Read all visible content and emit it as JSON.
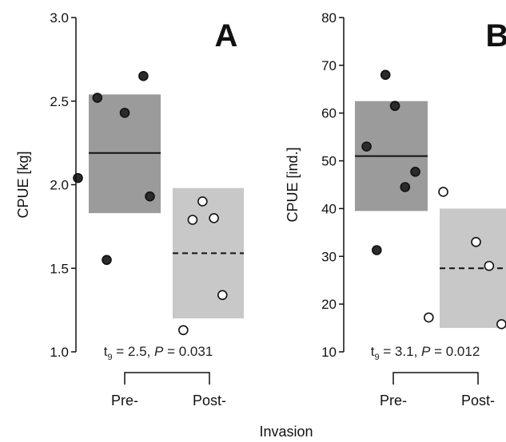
{
  "chart_data": [
    {
      "type": "scatter",
      "panel_label": "A",
      "ylabel": "CPUE [kg]",
      "ylim": [
        1.0,
        3.0
      ],
      "yticks": [
        "1.0",
        "1.5",
        "2.0",
        "2.5",
        "3.0"
      ],
      "categories": [
        "Pre-",
        "Post-"
      ],
      "stat": {
        "t_letter": "t",
        "df": "9",
        "t_value": " = 2.5, ",
        "p_letter": "P",
        "p_value": " = 0.031"
      },
      "groups": [
        {
          "category": "Pre-",
          "mean": 2.19,
          "band": [
            1.83,
            2.54
          ],
          "line": "solid",
          "fill": "#9b9b9b",
          "marker": "filled",
          "points": [
            {
              "x": 0.76,
              "y": 2.65
            },
            {
              "x": 0.12,
              "y": 2.52
            },
            {
              "x": 0.5,
              "y": 2.43
            },
            {
              "x": -0.15,
              "y": 2.04
            },
            {
              "x": 0.85,
              "y": 1.93
            },
            {
              "x": 0.25,
              "y": 1.55
            }
          ]
        },
        {
          "category": "Post-",
          "mean": 1.59,
          "band": [
            1.2,
            1.98
          ],
          "line": "dashed",
          "fill": "#c8c8c8",
          "marker": "open",
          "points": [
            {
              "x": 0.42,
              "y": 1.9
            },
            {
              "x": 0.28,
              "y": 1.79
            },
            {
              "x": 0.58,
              "y": 1.8
            },
            {
              "x": 0.7,
              "y": 1.34
            },
            {
              "x": 0.15,
              "y": 1.13
            }
          ]
        }
      ]
    },
    {
      "type": "scatter",
      "panel_label": "B",
      "ylabel": "CPUE [ind.]",
      "ylim": [
        10,
        80
      ],
      "yticks": [
        "10",
        "20",
        "30",
        "40",
        "50",
        "60",
        "70",
        "80"
      ],
      "categories": [
        "Pre-",
        "Post-"
      ],
      "stat": {
        "t_letter": "t",
        "df": "9",
        "t_value": " = 3.1, ",
        "p_letter": "P",
        "p_value": " = 0.012"
      },
      "groups": [
        {
          "category": "Pre-",
          "mean": 51,
          "band": [
            39.5,
            62.5
          ],
          "line": "solid",
          "fill": "#9b9b9b",
          "marker": "filled",
          "points": [
            {
              "x": 0.42,
              "y": 68
            },
            {
              "x": 0.55,
              "y": 61.5
            },
            {
              "x": 0.16,
              "y": 53
            },
            {
              "x": 0.83,
              "y": 47.7
            },
            {
              "x": 0.69,
              "y": 44.5
            },
            {
              "x": 0.3,
              "y": 31.3
            }
          ]
        },
        {
          "category": "Post-",
          "mean": 27.5,
          "band": [
            15,
            40
          ],
          "line": "dashed",
          "fill": "#c8c8c8",
          "marker": "open",
          "points": [
            {
              "x": 0.05,
              "y": 43.5
            },
            {
              "x": 0.5,
              "y": 33
            },
            {
              "x": 0.68,
              "y": 28
            },
            {
              "x": -0.15,
              "y": 17.2
            },
            {
              "x": 0.85,
              "y": 15.8
            }
          ]
        }
      ]
    }
  ],
  "xlabel": "Invasion"
}
